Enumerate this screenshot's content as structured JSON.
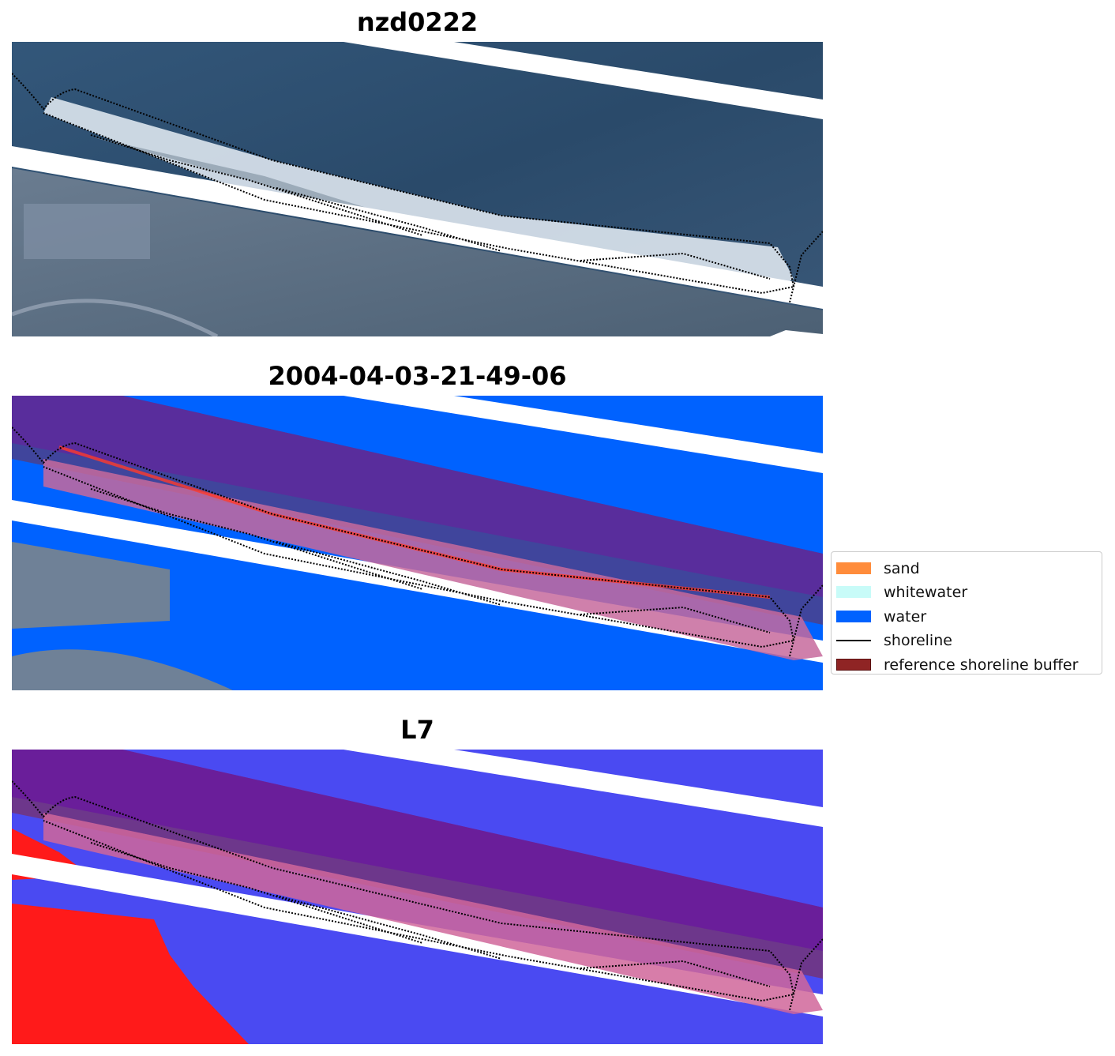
{
  "panels": [
    {
      "title": "nzd0222"
    },
    {
      "title": "2004-04-03-21-49-06"
    },
    {
      "title": "L7"
    }
  ],
  "legend": {
    "items": [
      {
        "label": "sand",
        "color": "#ff8c3b",
        "kind": "patch"
      },
      {
        "label": "whitewater",
        "color": "#c8fbf8",
        "kind": "patch"
      },
      {
        "label": "water",
        "color": "#0062ff",
        "kind": "patch"
      },
      {
        "label": "shoreline",
        "color": "#000000",
        "kind": "line"
      },
      {
        "label": "reference shoreline buffer",
        "color": "#8f2424",
        "kind": "patch"
      }
    ]
  },
  "colors": {
    "sea_rgb": "#2c4c6c",
    "land_rgb": "#5b6c80",
    "sand_rgb": "#dfe6ee",
    "class_water": "#0062ff",
    "buffer_overlay": "#8f2424",
    "mndwi_water": "#4a4af2",
    "mndwi_land": "#ff1a1a"
  }
}
